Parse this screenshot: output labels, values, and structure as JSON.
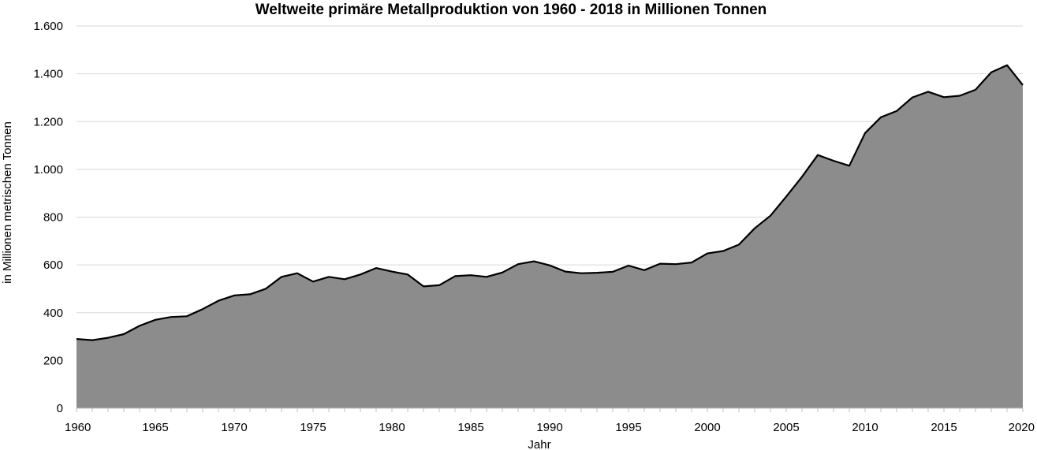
{
  "chart_data": {
    "type": "area",
    "title": "Weltweite primäre Metallproduktion von 1960 - 2018 in Millionen Tonnen",
    "xlabel": "Jahr",
    "ylabel": "in Millionen metrischen Tonnen",
    "xlim": [
      1960,
      2020
    ],
    "ylim": [
      0,
      1600
    ],
    "x_ticks": [
      1960,
      1965,
      1970,
      1975,
      1980,
      1985,
      1990,
      1995,
      2000,
      2005,
      2010,
      2015,
      2020
    ],
    "x_tick_labels": [
      "1960",
      "1965",
      "1970",
      "1975",
      "1980",
      "1985",
      "1990",
      "1995",
      "2000",
      "2005",
      "2010",
      "2015",
      "2020"
    ],
    "y_ticks": [
      0,
      200,
      400,
      600,
      800,
      1000,
      1200,
      1400,
      1600
    ],
    "y_tick_labels": [
      "0",
      "200",
      "400",
      "600",
      "800",
      "1.000",
      "1.200",
      "1.400",
      "1.600"
    ],
    "grid": true,
    "legend": "none",
    "fill_color": "#8c8c8c",
    "line_color": "#000000",
    "x": [
      1960,
      1961,
      1962,
      1963,
      1964,
      1965,
      1966,
      1967,
      1968,
      1969,
      1970,
      1971,
      1972,
      1973,
      1974,
      1975,
      1976,
      1977,
      1978,
      1979,
      1980,
      1981,
      1982,
      1983,
      1984,
      1985,
      1986,
      1987,
      1988,
      1989,
      1990,
      1991,
      1992,
      1993,
      1994,
      1995,
      1996,
      1997,
      1998,
      1999,
      2000,
      2001,
      2002,
      2003,
      2004,
      2005,
      2006,
      2007,
      2008,
      2009,
      2010,
      2011,
      2012,
      2013,
      2014,
      2015,
      2016,
      2017,
      2018,
      2019,
      2020
    ],
    "values": [
      290,
      285,
      295,
      310,
      345,
      370,
      382,
      385,
      415,
      450,
      472,
      477,
      500,
      550,
      565,
      530,
      550,
      540,
      560,
      587,
      572,
      560,
      510,
      515,
      553,
      557,
      550,
      568,
      603,
      615,
      598,
      572,
      565,
      567,
      571,
      597,
      578,
      605,
      603,
      610,
      648,
      658,
      685,
      753,
      806,
      886,
      969,
      1060,
      1036,
      1015,
      1152,
      1218,
      1244,
      1301,
      1325,
      1302,
      1308,
      1333,
      1406,
      1436,
      1353
    ]
  }
}
